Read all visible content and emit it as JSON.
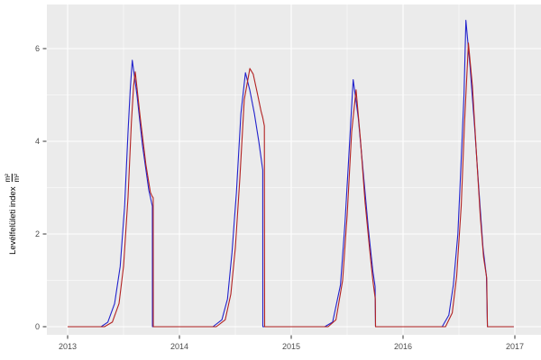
{
  "figure": {
    "ylabel": {
      "text": "Levélfelületi index",
      "fraction_numerator": "m²",
      "fraction_denominator": "m²"
    }
  },
  "colors": {
    "panel_background": "#EBEBEB",
    "grid_major": "#FFFFFF",
    "grid_minor": "#FFFFFF",
    "tick_mark": "#333333",
    "tick_label": "#4D4D4D",
    "series_blue": "#2222CC",
    "series_red": "#B22222"
  },
  "chart_data": {
    "type": "line",
    "title": "",
    "xlabel": "",
    "ylabel": "Levélfelületi index (m²/m²)",
    "grid": true,
    "legend": false,
    "x_ticks": [
      2013,
      2014,
      2015,
      2016,
      2017
    ],
    "x_minor_ticks": [
      2013.5,
      2014.5,
      2015.5,
      2016.5
    ],
    "y_ticks": [
      0,
      2,
      4,
      6
    ],
    "y_minor_ticks": [
      1,
      3,
      5
    ],
    "xlim": [
      2012.81,
      2017.23
    ],
    "ylim": [
      -0.17,
      6.95
    ],
    "series": [
      {
        "name": "series-blue",
        "color_key": "series_blue",
        "points": [
          [
            2013.0,
            0
          ],
          [
            2013.2,
            0
          ],
          [
            2013.3,
            0
          ],
          [
            2013.36,
            0.1
          ],
          [
            2013.42,
            0.5
          ],
          [
            2013.47,
            1.3
          ],
          [
            2013.51,
            2.6
          ],
          [
            2013.54,
            4.2
          ],
          [
            2013.56,
            5.1
          ],
          [
            2013.578,
            5.75
          ],
          [
            2013.62,
            5.0
          ],
          [
            2013.67,
            3.9
          ],
          [
            2013.726,
            2.95
          ],
          [
            2013.758,
            2.6
          ],
          [
            2013.759,
            0
          ],
          [
            2014.0,
            0
          ],
          [
            2014.3,
            0
          ],
          [
            2014.38,
            0.15
          ],
          [
            2014.43,
            0.6
          ],
          [
            2014.47,
            1.6
          ],
          [
            2014.51,
            2.9
          ],
          [
            2014.55,
            4.6
          ],
          [
            2014.59,
            5.48
          ],
          [
            2014.63,
            5.1
          ],
          [
            2014.67,
            4.6
          ],
          [
            2014.71,
            4.0
          ],
          [
            2014.745,
            3.38
          ],
          [
            2014.746,
            0
          ],
          [
            2015.0,
            0
          ],
          [
            2015.3,
            0
          ],
          [
            2015.37,
            0.1
          ],
          [
            2015.44,
            0.9
          ],
          [
            2015.48,
            2.2
          ],
          [
            2015.52,
            3.9
          ],
          [
            2015.554,
            5.33
          ],
          [
            2015.6,
            4.5
          ],
          [
            2015.645,
            3.3
          ],
          [
            2015.69,
            2.1
          ],
          [
            2015.73,
            1.2
          ],
          [
            2015.75,
            0.87
          ],
          [
            2015.754,
            0
          ],
          [
            2016.0,
            0
          ],
          [
            2016.35,
            0
          ],
          [
            2016.41,
            0.25
          ],
          [
            2016.45,
            0.9
          ],
          [
            2016.49,
            2.0
          ],
          [
            2016.52,
            3.6
          ],
          [
            2016.545,
            5.0
          ],
          [
            2016.562,
            6.61
          ],
          [
            2016.6,
            5.6
          ],
          [
            2016.64,
            4.3
          ],
          [
            2016.68,
            2.9
          ],
          [
            2016.715,
            1.7
          ],
          [
            2016.746,
            1.09
          ],
          [
            2016.755,
            0
          ],
          [
            2016.99,
            0
          ]
        ]
      },
      {
        "name": "series-red",
        "color_key": "series_red",
        "points": [
          [
            2013.0,
            0
          ],
          [
            2013.22,
            0
          ],
          [
            2013.33,
            0
          ],
          [
            2013.4,
            0.1
          ],
          [
            2013.46,
            0.5
          ],
          [
            2013.5,
            1.3
          ],
          [
            2013.54,
            2.8
          ],
          [
            2013.57,
            4.4
          ],
          [
            2013.59,
            5.2
          ],
          [
            2013.605,
            5.5
          ],
          [
            2013.65,
            4.5
          ],
          [
            2013.7,
            3.5
          ],
          [
            2013.74,
            2.9
          ],
          [
            2013.755,
            2.82
          ],
          [
            2013.765,
            2.78
          ],
          [
            2013.766,
            0
          ],
          [
            2014.0,
            0
          ],
          [
            2014.33,
            0
          ],
          [
            2014.41,
            0.15
          ],
          [
            2014.46,
            0.7
          ],
          [
            2014.5,
            1.7
          ],
          [
            2014.54,
            3.2
          ],
          [
            2014.58,
            4.9
          ],
          [
            2014.63,
            5.57
          ],
          [
            2014.66,
            5.45
          ],
          [
            2014.7,
            5.0
          ],
          [
            2014.73,
            4.65
          ],
          [
            2014.745,
            4.51
          ],
          [
            2014.76,
            4.33
          ],
          [
            2014.762,
            0
          ],
          [
            2015.0,
            0
          ],
          [
            2015.33,
            0
          ],
          [
            2015.4,
            0.15
          ],
          [
            2015.46,
            1.0
          ],
          [
            2015.5,
            2.4
          ],
          [
            2015.54,
            4.2
          ],
          [
            2015.58,
            5.11
          ],
          [
            2015.62,
            4.0
          ],
          [
            2015.66,
            2.7
          ],
          [
            2015.7,
            1.7
          ],
          [
            2015.73,
            1.0
          ],
          [
            2015.752,
            0.6
          ],
          [
            2015.754,
            0
          ],
          [
            2016.0,
            0
          ],
          [
            2016.38,
            0
          ],
          [
            2016.44,
            0.3
          ],
          [
            2016.48,
            1.1
          ],
          [
            2016.52,
            2.6
          ],
          [
            2016.55,
            4.4
          ],
          [
            2016.585,
            6.12
          ],
          [
            2016.62,
            5.2
          ],
          [
            2016.655,
            3.8
          ],
          [
            2016.69,
            2.4
          ],
          [
            2016.72,
            1.5
          ],
          [
            2016.748,
            1.05
          ],
          [
            2016.755,
            0
          ],
          [
            2016.99,
            0
          ]
        ]
      }
    ]
  }
}
